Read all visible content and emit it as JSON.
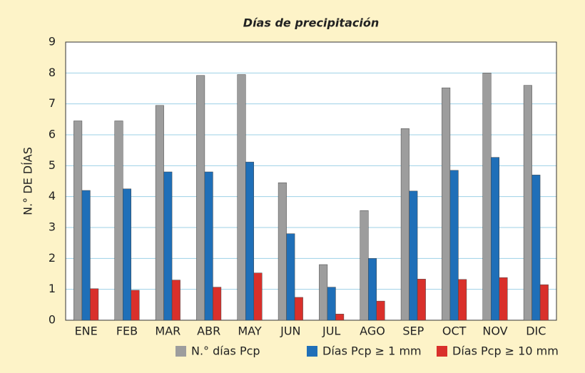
{
  "chart_data": {
    "type": "bar",
    "title": "Días de precipitación",
    "y_label": "N.° DE DÍAS",
    "categories": [
      "ENE",
      "FEB",
      "MAR",
      "ABR",
      "MAY",
      "JUN",
      "JUL",
      "AGO",
      "SEP",
      "OCT",
      "NOV",
      "DIC"
    ],
    "series": [
      {
        "name": "N.° días Pcp",
        "color": "#9d9d9d",
        "values": [
          6.45,
          6.45,
          6.95,
          7.92,
          7.95,
          4.45,
          1.8,
          3.55,
          6.2,
          7.52,
          8.0,
          7.6
        ]
      },
      {
        "name": "Días Pcp  ≥ 1 mm",
        "color": "#1f6fb8",
        "values": [
          4.2,
          4.25,
          4.8,
          4.8,
          5.12,
          2.8,
          1.07,
          2.0,
          4.18,
          4.85,
          5.27,
          4.7
        ]
      },
      {
        "name": "Días Pcp ≥ 10 mm",
        "color": "#d9302b",
        "values": [
          1.02,
          0.97,
          1.3,
          1.07,
          1.53,
          0.74,
          0.2,
          0.62,
          1.33,
          1.32,
          1.38,
          1.15
        ]
      }
    ],
    "ylim": [
      0,
      9
    ],
    "yticks": [
      0,
      1,
      2,
      3,
      4,
      5,
      6,
      7,
      8,
      9
    ],
    "grid": true,
    "legend": "bottom"
  }
}
